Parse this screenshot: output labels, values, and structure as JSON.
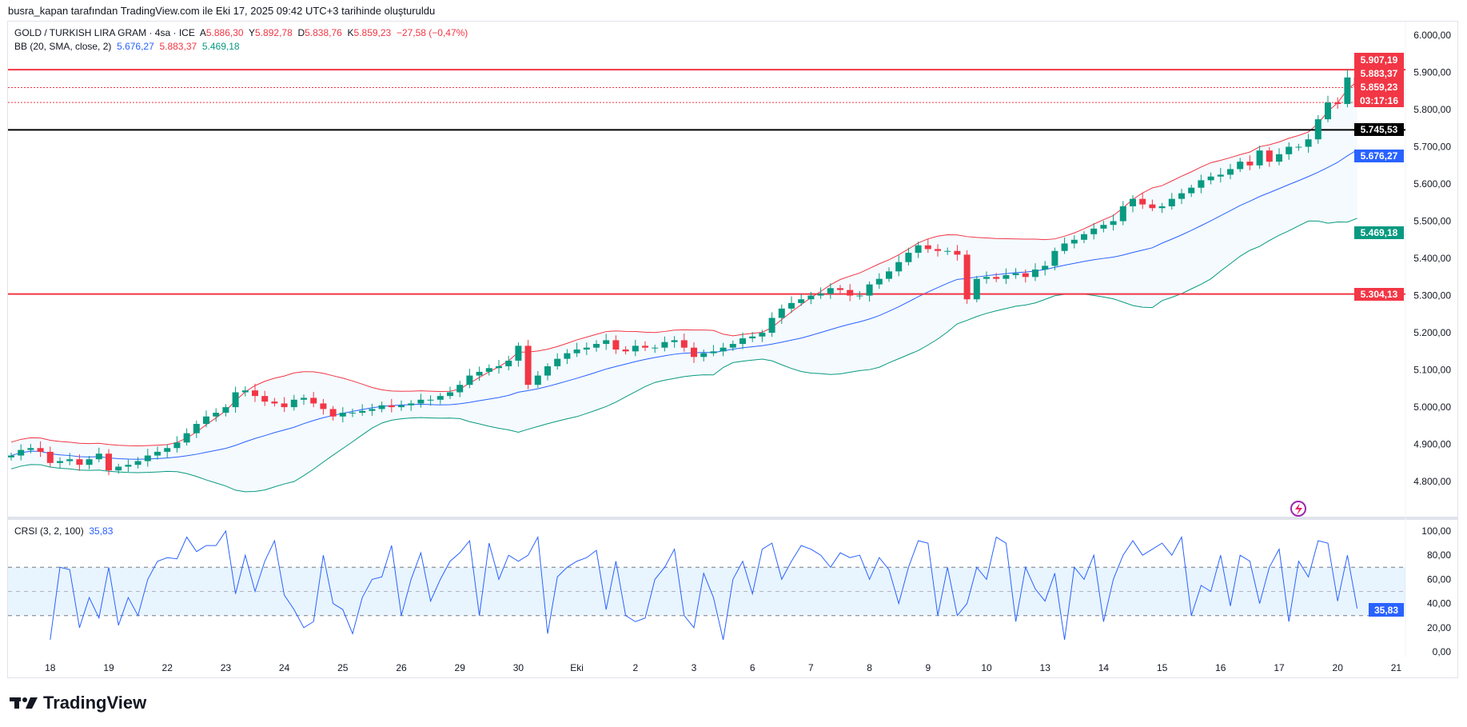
{
  "header": {
    "attribution": "busra_kapan tarafından TradingView.com ile Eki 17, 2025 09:42 UTC+3 tarihinde oluşturuldu"
  },
  "symbol": {
    "name": "GOLD / TURKISH LIRA GRAM · 4sa · ICE",
    "open_label": "A",
    "open": "5.886,30",
    "high_label": "Y",
    "high": "5.892,78",
    "low_label": "D",
    "low": "5.838,76",
    "close_label": "K",
    "close": "5.859,23",
    "change": "−27,58 (−0,47%)"
  },
  "bb": {
    "label": "BB (20, SMA, close, 2)",
    "basis": "5.676,27",
    "upper": "5.883,37",
    "lower": "5.469,18"
  },
  "crsi": {
    "label": "CRSI (3, 2, 100)",
    "value": "35,83"
  },
  "colors": {
    "up": "#089981",
    "down": "#f23645",
    "basis": "#2962ff",
    "upper": "#f23645",
    "lower": "#089981",
    "rsi": "#2962ff"
  },
  "price_axis": [
    "6.000,00",
    "5.900,00",
    "5.800,00",
    "5.700,00",
    "5.600,00",
    "5.500,00",
    "5.400,00",
    "5.300,00",
    "5.200,00",
    "5.100,00",
    "5.000,00",
    "4.900,00",
    "4.800,00"
  ],
  "rsi_axis": [
    "100,00",
    "80,00",
    "60,00",
    "40,00",
    "20,00",
    "0,00"
  ],
  "price_tags": {
    "resistance": "5.907,19",
    "bb_upper": "5.883,37",
    "last": "5.859,23",
    "countdown": "03:17:16",
    "level_black": "5.745,53",
    "bb_basis": "5.676,27",
    "bb_lower": "5.469,18",
    "support": "5.304,13"
  },
  "x_axis": [
    "18",
    "19",
    "22",
    "23",
    "24",
    "25",
    "26",
    "29",
    "30",
    "Eki",
    "2",
    "3",
    "6",
    "7",
    "8",
    "9",
    "10",
    "13",
    "14",
    "15",
    "16",
    "17",
    "20",
    "21"
  ],
  "chart_data": {
    "type": "candlestick",
    "ylim": [
      4750,
      6020
    ],
    "hlines": [
      {
        "value": 5907.19,
        "color": "#f23645",
        "style": "solid"
      },
      {
        "value": 5859.23,
        "color": "#f23645",
        "style": "dotted"
      },
      {
        "value": 5819,
        "color": "#f23645",
        "style": "dotted"
      },
      {
        "value": 5745.53,
        "color": "#000000",
        "style": "solid"
      },
      {
        "value": 5304.13,
        "color": "#f23645",
        "style": "solid"
      }
    ],
    "closes": [
      4870,
      4885,
      4890,
      4880,
      4850,
      4855,
      4860,
      4845,
      4860,
      4875,
      4830,
      4840,
      4845,
      4855,
      4870,
      4880,
      4890,
      4905,
      4930,
      4955,
      4975,
      4985,
      5000,
      5040,
      5045,
      5030,
      5015,
      5010,
      5000,
      5020,
      5025,
      5010,
      4995,
      4975,
      4985,
      4985,
      4990,
      4995,
      5005,
      5000,
      5005,
      5010,
      5020,
      5020,
      5030,
      5040,
      5060,
      5085,
      5095,
      5105,
      5110,
      5125,
      5165,
      5060,
      5085,
      5110,
      5130,
      5145,
      5155,
      5160,
      5170,
      5180,
      5155,
      5150,
      5165,
      5160,
      5160,
      5175,
      5180,
      5160,
      5135,
      5145,
      5150,
      5160,
      5170,
      5185,
      5190,
      5200,
      5240,
      5265,
      5280,
      5290,
      5300,
      5305,
      5320,
      5315,
      5300,
      5300,
      5330,
      5345,
      5365,
      5390,
      5415,
      5435,
      5425,
      5420,
      5420,
      5410,
      5290,
      5345,
      5350,
      5345,
      5355,
      5360,
      5350,
      5370,
      5380,
      5420,
      5440,
      5450,
      5465,
      5480,
      5490,
      5500,
      5540,
      5560,
      5545,
      5535,
      5540,
      5560,
      5575,
      5590,
      5610,
      5620,
      5625,
      5640,
      5660,
      5650,
      5690,
      5660,
      5680,
      5700,
      5700,
      5720,
      5774,
      5819,
      5815,
      5886.3,
      5859.23
    ],
    "last_high": 5907.19,
    "rsi": [
      10,
      70,
      68,
      20,
      45,
      28,
      70,
      22,
      45,
      30,
      60,
      75,
      78,
      77,
      95,
      83,
      88,
      88,
      100,
      48,
      80,
      50,
      75,
      92,
      47,
      35,
      20,
      25,
      80,
      40,
      35,
      15,
      45,
      60,
      62,
      88,
      30,
      60,
      82,
      42,
      60,
      75,
      82,
      92,
      30,
      90,
      60,
      80,
      75,
      80,
      95,
      15,
      62,
      70,
      75,
      78,
      84,
      35,
      75,
      30,
      25,
      28,
      60,
      70,
      85,
      30,
      20,
      65,
      45,
      10,
      60,
      75,
      48,
      85,
      90,
      60,
      75,
      88,
      85,
      80,
      70,
      82,
      78,
      80,
      60,
      78,
      68,
      40,
      70,
      92,
      90,
      30,
      70,
      30,
      40,
      70,
      60,
      95,
      90,
      25,
      70,
      52,
      42,
      65,
      10,
      70,
      60,
      80,
      25,
      60,
      80,
      92,
      80,
      85,
      90,
      80,
      95,
      30,
      55,
      50,
      80,
      38,
      80,
      75,
      40,
      70,
      85,
      25,
      75,
      62,
      92,
      90,
      42,
      80,
      35.83
    ],
    "rsi_bands": [
      30,
      50,
      70
    ]
  },
  "logo": {
    "text": "TradingView"
  }
}
